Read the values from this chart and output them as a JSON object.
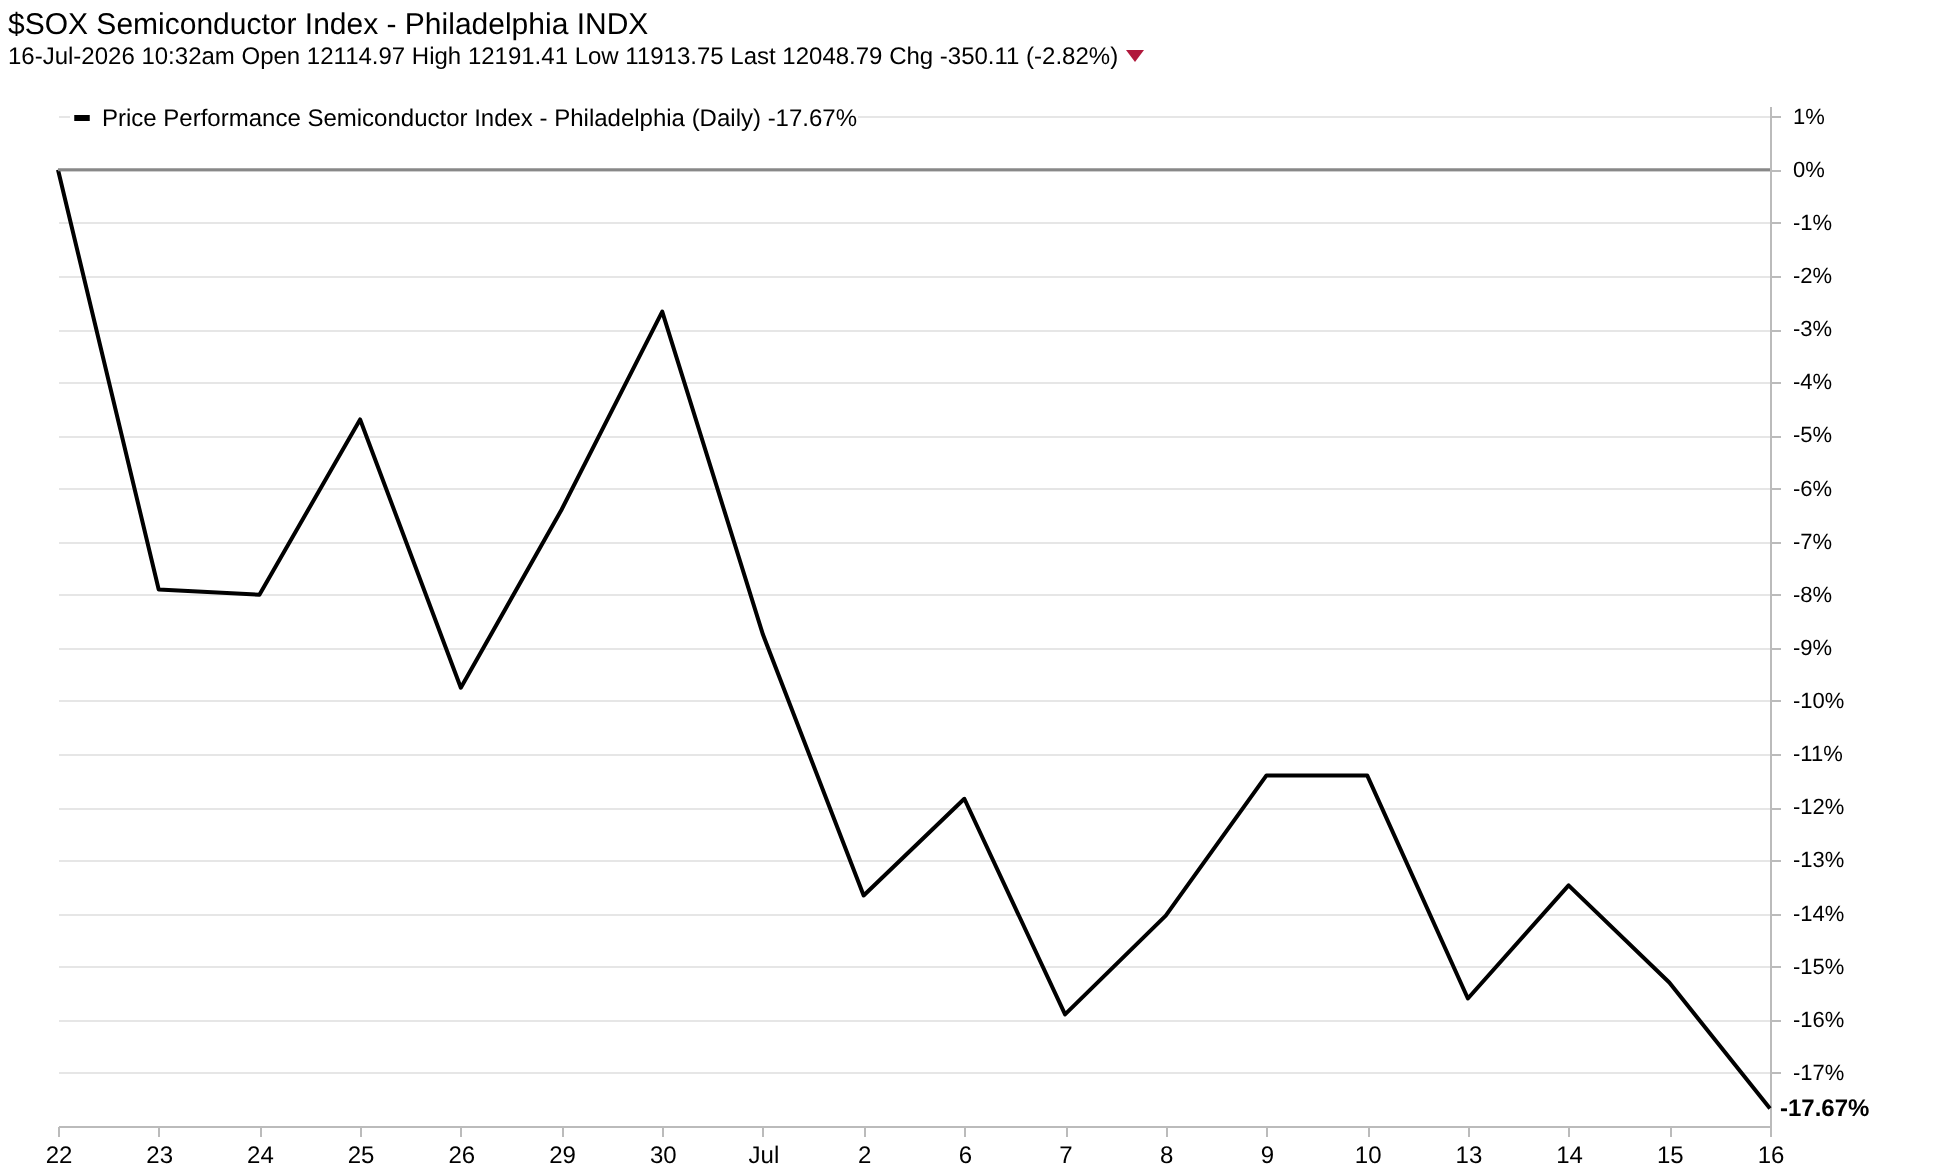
{
  "chart_data": {
    "type": "line",
    "title": "$SOX Semiconductor Index - Philadelphia INDX",
    "subtitle": "16-Jul-2026 10:32am  Open 12114.97  High 12191.41  Low 11913.75  Last 12048.79  Chg -350.11 (-2.82%)",
    "categories": [
      "22",
      "23",
      "24",
      "25",
      "26",
      "29",
      "30",
      "Jul",
      "2",
      "6",
      "7",
      "8",
      "9",
      "10",
      "13",
      "14",
      "15",
      "16"
    ],
    "series": [
      {
        "name": "Price Performance Semiconductor Index - Philadelphia (Daily) -17.67%",
        "color": "#000000",
        "values": [
          0,
          -7.9,
          -8.0,
          -4.7,
          -9.75,
          -6.4,
          -2.67,
          -8.75,
          -13.66,
          -11.84,
          -15.9,
          -14.04,
          -11.4,
          -11.4,
          -15.6,
          -13.47,
          -15.3,
          -17.67
        ],
        "value_labels": [
          null,
          null,
          null,
          null,
          null,
          null,
          null,
          null,
          null,
          null,
          null,
          null,
          null,
          null,
          null,
          null,
          null,
          "-17.67%"
        ]
      }
    ],
    "ylim": [
      -18,
      1.2
    ],
    "yticks": [
      {
        "value": 1,
        "label": "1%"
      },
      {
        "value": 0,
        "label": "0%"
      },
      {
        "value": -1,
        "label": "-1%"
      },
      {
        "value": -2,
        "label": "-2%"
      },
      {
        "value": -3,
        "label": "-3%"
      },
      {
        "value": -4,
        "label": "-4%"
      },
      {
        "value": -5,
        "label": "-5%"
      },
      {
        "value": -6,
        "label": "-6%"
      },
      {
        "value": -7,
        "label": "-7%"
      },
      {
        "value": -8,
        "label": "-8%"
      },
      {
        "value": -9,
        "label": "-9%"
      },
      {
        "value": -10,
        "label": "-10%"
      },
      {
        "value": -11,
        "label": "-11%"
      },
      {
        "value": -12,
        "label": "-12%"
      },
      {
        "value": -13,
        "label": "-13%"
      },
      {
        "value": -14,
        "label": "-14%"
      },
      {
        "value": -15,
        "label": "-15%"
      },
      {
        "value": -16,
        "label": "-16%"
      },
      {
        "value": -17,
        "label": "-17%"
      }
    ],
    "ref_lines": [
      {
        "axis": "y",
        "value": 0,
        "color": "#888888"
      }
    ],
    "grid": "y",
    "legend": "top left",
    "marker": "none",
    "line_style": "solid"
  }
}
